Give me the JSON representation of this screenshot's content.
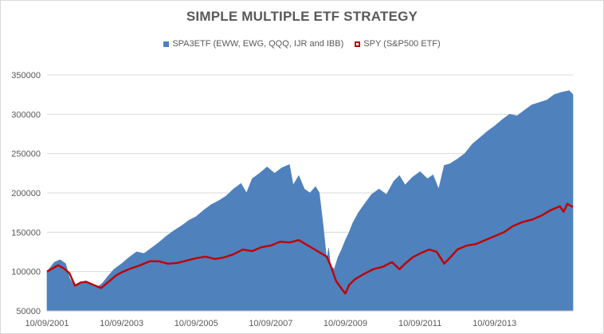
{
  "chart_data": {
    "type": "area",
    "title": "SIMPLE MULTIPLE ETF STRATEGY",
    "xlabel": "",
    "ylabel": "",
    "ylim": [
      50000,
      350000
    ],
    "y_ticks": [
      50000,
      100000,
      150000,
      200000,
      250000,
      300000,
      350000
    ],
    "y_tick_labels": [
      "50000",
      "100000",
      "150000",
      "200000",
      "250000",
      "300000",
      "350000"
    ],
    "x_tick_labels": [
      "10/09/2001",
      "10/09/2003",
      "10/09/2005",
      "10/09/2007",
      "10/09/2009",
      "10/09/2011",
      "10/09/2013"
    ],
    "x_ticks": [
      2001.0,
      2003.0,
      2005.0,
      2007.0,
      2009.0,
      2011.0,
      2013.0
    ],
    "xlim": [
      2001.0,
      2015.1
    ],
    "legend_position": "top",
    "grid": "horizontal",
    "series": [
      {
        "name": "SPA3ETF (EWW, EWG, QQQ, IJR and IBB)",
        "style": "area",
        "color": "#4f81bd",
        "x": [
          2001.0,
          2001.1,
          2001.2,
          2001.35,
          2001.5,
          2001.6,
          2001.75,
          2001.9,
          2002.05,
          2002.2,
          2002.35,
          2002.5,
          2002.65,
          2002.8,
          2003.0,
          2003.2,
          2003.4,
          2003.6,
          2003.8,
          2004.0,
          2004.2,
          2004.4,
          2004.6,
          2004.8,
          2005.0,
          2005.2,
          2005.4,
          2005.6,
          2005.8,
          2006.0,
          2006.2,
          2006.35,
          2006.5,
          2006.7,
          2006.9,
          2007.1,
          2007.3,
          2007.5,
          2007.6,
          2007.75,
          2007.9,
          2008.05,
          2008.2,
          2008.3,
          2008.4,
          2008.5,
          2008.55,
          2008.6,
          2008.7,
          2008.8,
          2008.9,
          2009.0,
          2009.1,
          2009.2,
          2009.35,
          2009.5,
          2009.7,
          2009.9,
          2010.1,
          2010.3,
          2010.45,
          2010.6,
          2010.8,
          2011.0,
          2011.2,
          2011.35,
          2011.5,
          2011.65,
          2011.8,
          2012.0,
          2012.2,
          2012.4,
          2012.6,
          2012.8,
          2013.0,
          2013.2,
          2013.4,
          2013.6,
          2013.8,
          2014.0,
          2014.2,
          2014.4,
          2014.6,
          2014.8,
          2015.0,
          2015.1
        ],
        "values": [
          100000,
          106000,
          112000,
          115000,
          110000,
          92000,
          80000,
          86000,
          88000,
          83000,
          80000,
          86000,
          95000,
          103000,
          110000,
          118000,
          125000,
          123000,
          130000,
          137000,
          145000,
          152000,
          158000,
          165000,
          170000,
          178000,
          185000,
          190000,
          196000,
          205000,
          212000,
          200000,
          218000,
          225000,
          233000,
          225000,
          232000,
          236000,
          210000,
          222000,
          205000,
          200000,
          208000,
          200000,
          160000,
          115000,
          130000,
          108000,
          103000,
          118000,
          128000,
          140000,
          150000,
          162000,
          175000,
          185000,
          198000,
          205000,
          198000,
          215000,
          222000,
          210000,
          220000,
          227000,
          218000,
          223000,
          205000,
          235000,
          237000,
          243000,
          250000,
          262000,
          270000,
          278000,
          285000,
          293000,
          300000,
          298000,
          305000,
          312000,
          315000,
          318000,
          325000,
          328000,
          330000,
          325000
        ]
      },
      {
        "name": "SPY (S&P500 ETF)",
        "style": "line",
        "color": "#c00000",
        "x": [
          2001.0,
          2001.15,
          2001.3,
          2001.45,
          2001.6,
          2001.75,
          2001.9,
          2002.05,
          2002.25,
          2002.45,
          2002.65,
          2002.85,
          2003.0,
          2003.25,
          2003.5,
          2003.75,
          2004.0,
          2004.25,
          2004.5,
          2004.75,
          2005.0,
          2005.25,
          2005.5,
          2005.75,
          2006.0,
          2006.25,
          2006.5,
          2006.75,
          2007.0,
          2007.25,
          2007.5,
          2007.75,
          2008.0,
          2008.25,
          2008.5,
          2008.6,
          2008.75,
          2008.9,
          2009.0,
          2009.1,
          2009.25,
          2009.5,
          2009.75,
          2010.0,
          2010.25,
          2010.45,
          2010.6,
          2010.8,
          2011.0,
          2011.25,
          2011.45,
          2011.65,
          2011.85,
          2012.0,
          2012.25,
          2012.5,
          2012.75,
          2013.0,
          2013.25,
          2013.5,
          2013.75,
          2014.0,
          2014.25,
          2014.5,
          2014.75,
          2014.85,
          2014.95,
          2015.1
        ],
        "values": [
          100000,
          104000,
          108000,
          104000,
          98000,
          82000,
          86000,
          87000,
          83000,
          79000,
          87000,
          95000,
          99000,
          104000,
          108000,
          113000,
          113000,
          110000,
          111000,
          114000,
          117000,
          119000,
          116000,
          118000,
          122000,
          128000,
          126000,
          131000,
          133000,
          138000,
          137000,
          140000,
          133000,
          126000,
          119000,
          108000,
          88000,
          78000,
          72000,
          83000,
          90000,
          97000,
          103000,
          106000,
          112000,
          103000,
          110000,
          118000,
          123000,
          128000,
          125000,
          110000,
          120000,
          128000,
          133000,
          135000,
          140000,
          145000,
          150000,
          158000,
          163000,
          166000,
          171000,
          178000,
          183000,
          176000,
          186000,
          182000
        ]
      }
    ]
  }
}
